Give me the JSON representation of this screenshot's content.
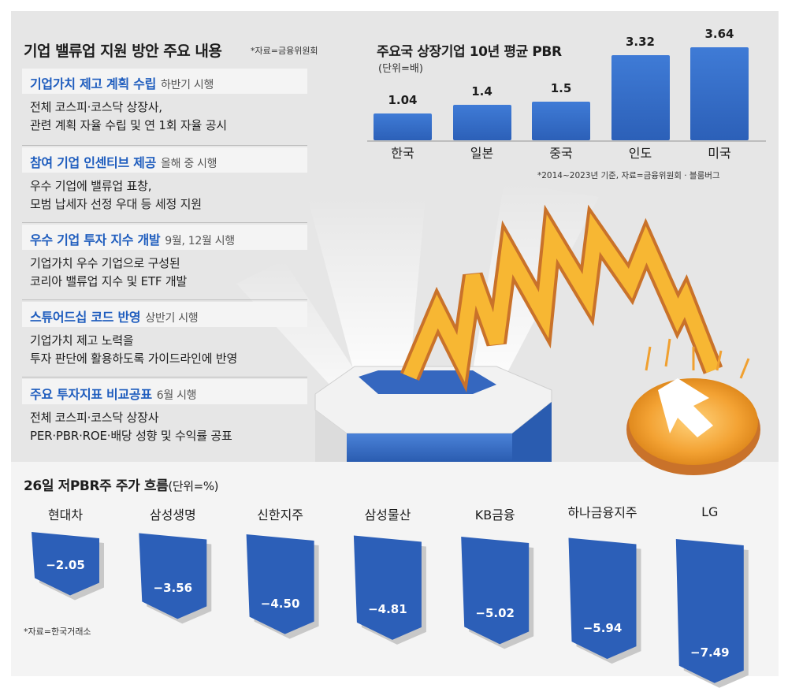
{
  "policy_panel": {
    "title": "기업 밸류업 지원 방안 주요 내용",
    "source": "*자료=금융위원회",
    "items": [
      {
        "title": "기업가치 제고 계획 수립",
        "timing": "하반기 시행",
        "desc1": "전체 코스피·코스닥 상장사,",
        "desc2": "관련 계획 자율 수립 및 연 1회 자율 공시"
      },
      {
        "title": "참여 기업 인센티브  제공",
        "timing": "올해 중 시행",
        "desc1": "우수 기업에 밸류업 표창,",
        "desc2": "모범 납세자 선정 우대 등 세정 지원"
      },
      {
        "title": "우수 기업 투자 지수 개발",
        "timing": "9월, 12월 시행",
        "desc1": "기업가치 우수 기업으로 구성된",
        "desc2": "코리아 밸류업 지수 및 ETF 개발"
      },
      {
        "title": "스튜어드십 코드 반영",
        "timing": "상반기 시행",
        "desc1": "기업가치 제고 노력을",
        "desc2": "투자 판단에 활용하도록 가이드라인에 반영"
      },
      {
        "title": "주요 투자지표 비교공표",
        "timing": "6월 시행",
        "desc1": "전체 코스피·코스닥 상장사",
        "desc2": "PER·PBR·ROE·배당 성향 및 수익률 공표"
      }
    ]
  },
  "chart_data": [
    {
      "type": "bar",
      "title": "주요국 상장기업 10년 평균 PBR",
      "ylabel": "(단위=배)",
      "categories": [
        "한국",
        "일본",
        "중국",
        "인도",
        "미국"
      ],
      "values": [
        1.04,
        1.4,
        1.5,
        3.32,
        3.64
      ],
      "value_labels": [
        "1.04",
        "1.4",
        "1.5",
        "3.32",
        "3.64"
      ],
      "ylim": [
        0,
        3.64
      ],
      "footnote": "*2014~2023년 기준, 자료=금융위원회 · 블룸버그",
      "color": "#2f67c2"
    },
    {
      "type": "bar",
      "title": "26일 저PBR주 주가 흐름",
      "unit": "(단위=%)",
      "categories": [
        "현대차",
        "삼성생명",
        "신한지주",
        "삼성물산",
        "KB금융",
        "하나금융지주",
        "LG"
      ],
      "values": [
        -2.05,
        -3.56,
        -4.5,
        -4.81,
        -5.02,
        -5.94,
        -7.49
      ],
      "value_labels": [
        "−2.05",
        "−3.56",
        "−4.50",
        "−4.81",
        "−5.02",
        "−5.94",
        "−7.49"
      ],
      "ylim": [
        -7.49,
        0
      ],
      "source": "*자료=한국거래소",
      "color": "#2c5fb8"
    }
  ],
  "colors": {
    "accent_blue": "#1f5dbe",
    "bar_blue": "#2f67c2",
    "spring_orange": "#f0a030",
    "spring_dark": "#c9722a"
  }
}
